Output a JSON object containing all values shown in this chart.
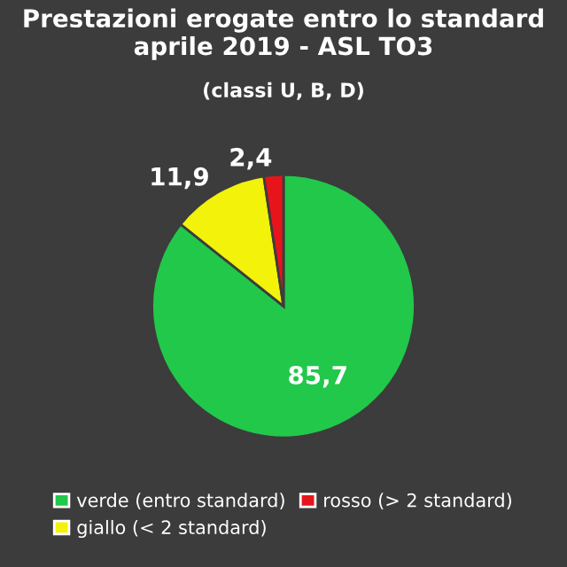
{
  "chart_data": {
    "type": "pie",
    "title": "Prestazioni erogate entro lo standard\naprile 2019 - ASL TO3",
    "subtitle": "(classi U, B, D)",
    "categories": [
      "verde (entro standard)",
      "giallo (< 2 standard)",
      "rosso (> 2 standard)"
    ],
    "values": [
      85.7,
      11.9,
      2.4
    ],
    "colors": [
      "#22c84a",
      "#f2f20a",
      "#e8141c"
    ],
    "value_labels": [
      "85,7",
      "11,9",
      "2,4"
    ],
    "legend": "bottom"
  }
}
